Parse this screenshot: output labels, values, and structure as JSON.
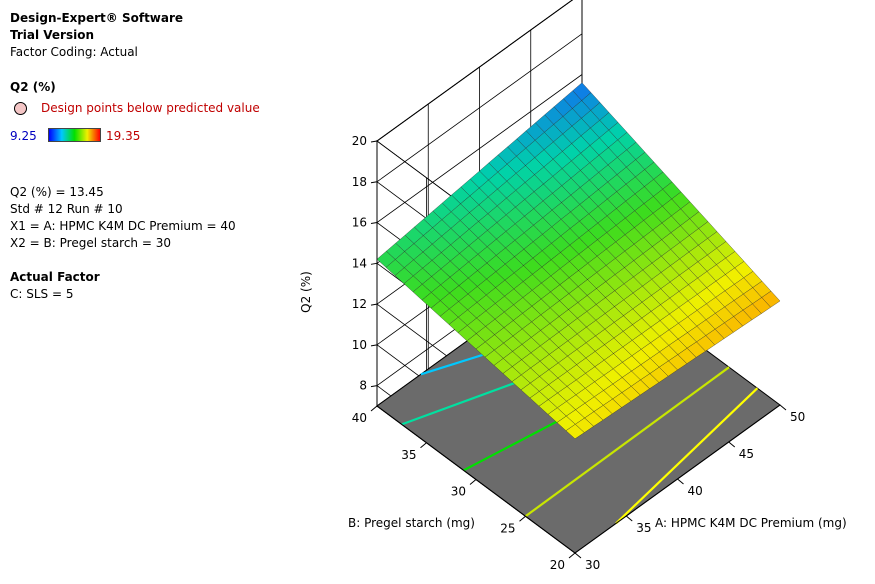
{
  "header": {
    "software": "Design-Expert® Software",
    "version": "Trial Version",
    "coding": "Factor Coding: Actual"
  },
  "response": {
    "title": "Q2 (%)",
    "legend_label": "Design points below predicted value",
    "range_low": "9.25",
    "range_high": "19.35"
  },
  "point_info": {
    "value": "Q2 (%) = 13.45",
    "std_run": "Std # 12 Run # 10",
    "x1": "X1 = A: HPMC K4M DC Premium = 40",
    "x2": "X2 = B: Pregel starch = 30"
  },
  "actual_factor": {
    "heading": "Actual Factor",
    "value": "C: SLS = 5"
  },
  "chart_data": {
    "type": "surface",
    "zlabel": "Q2 (%)",
    "xlabel": "A: HPMC K4M DC Premium (mg)",
    "ylabel": "B: Pregel starch (mg)",
    "x_ticks": [
      "30",
      "35",
      "40",
      "45",
      "50"
    ],
    "y_ticks": [
      "20",
      "25",
      "30",
      "35",
      "40"
    ],
    "z_ticks": [
      "8",
      "10",
      "12",
      "14",
      "16",
      "18",
      "20"
    ],
    "xlim": [
      30,
      50
    ],
    "ylim": [
      20,
      40
    ],
    "zlim": [
      7,
      20
    ],
    "surface_corners": {
      "a30_b20": 12.6,
      "a50_b20": 12.1,
      "a30_b40": 14.2,
      "a50_b40": 15.6
    },
    "color_range": [
      9.25,
      19.35
    ],
    "contour_colors": [
      "#ffff00",
      "#c8e600",
      "#00e000",
      "#00e0a0",
      "#00c8ff",
      "#3c8cff"
    ]
  }
}
